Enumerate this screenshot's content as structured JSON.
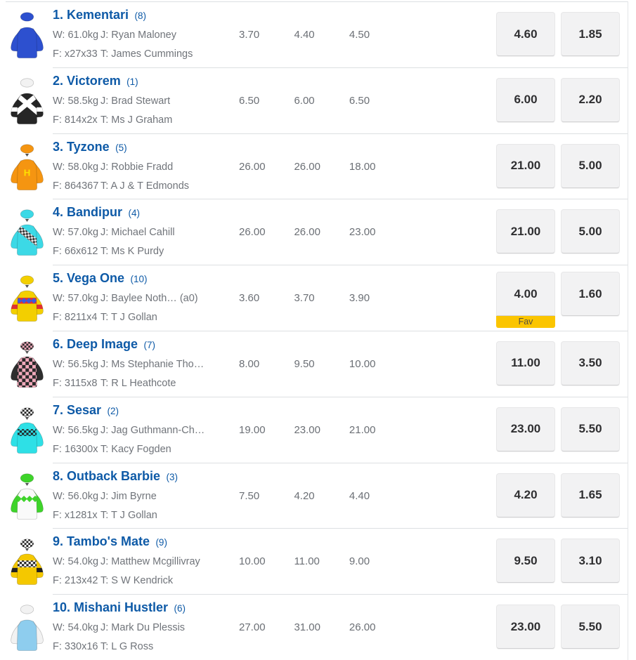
{
  "colors": {
    "link_blue": "#0e5aa7",
    "detail_gray": "#70747a",
    "button_bg": "#f2f2f3",
    "fav_yellow": "#fbc500",
    "separator": "#dddfe2"
  },
  "fav_label": "Fav",
  "horses": [
    {
      "number_name": "1. Kementari",
      "barrier": "(8)",
      "weight": "W: 61.0kg",
      "jockey": "J: Ryan Maloney",
      "form": "F: x27x33",
      "trainer": "T: James Cummings",
      "flucs": [
        "3.70",
        "4.40",
        "4.50"
      ],
      "win": "4.60",
      "place": "1.85",
      "fav": false,
      "silk": {
        "icon": "jockey-silks",
        "cap": "#2d50cf",
        "body": "#2d50cf",
        "sleeves": "#2d50cf",
        "pattern": "plain",
        "peak": false
      }
    },
    {
      "number_name": "2. Victorem",
      "barrier": "(1)",
      "weight": "W: 58.5kg",
      "jockey": "J: Brad Stewart",
      "form": "F: 814x2x",
      "trainer": "T: Ms J Graham",
      "flucs": [
        "6.50",
        "6.00",
        "6.50"
      ],
      "win": "6.00",
      "place": "2.20",
      "fav": false,
      "silk": {
        "icon": "jockey-silks",
        "cap": "#f2f2f2",
        "body": "#262626",
        "sleeves": "#262626",
        "pattern": "cross-sash",
        "pattern_color": "#ffffff",
        "sleeve_band": "#ffffff",
        "peak": false
      }
    },
    {
      "number_name": "3. Tyzone",
      "barrier": "(5)",
      "weight": "W: 58.0kg",
      "jockey": "J: Robbie Fradd",
      "form": "F: 864367",
      "trainer": "T: A J & T Edmonds",
      "flucs": [
        "26.00",
        "26.00",
        "18.00"
      ],
      "win": "21.00",
      "place": "5.00",
      "fav": false,
      "silk": {
        "icon": "jockey-silks",
        "cap": "#f59511",
        "body": "#f59511",
        "sleeves": "#f59511",
        "pattern": "letter",
        "letter": "H",
        "pattern_color": "#ffe000",
        "peak": true
      }
    },
    {
      "number_name": "4. Bandipur",
      "barrier": "(4)",
      "weight": "W: 57.0kg",
      "jockey": "J: Michael Cahill",
      "form": "F: 66x612",
      "trainer": "T: Ms K Purdy",
      "flucs": [
        "26.00",
        "26.00",
        "23.00"
      ],
      "win": "21.00",
      "place": "5.00",
      "fav": false,
      "silk": {
        "icon": "jockey-silks",
        "cap": "#3cd9e6",
        "body": "#3cd9e6",
        "sleeves": "#3cd9e6",
        "pattern": "check-sash",
        "pattern_color": "#333333",
        "pattern_color2": "#e8e8e8",
        "peak": true
      }
    },
    {
      "number_name": "5. Vega One",
      "barrier": "(10)",
      "weight": "W: 57.0kg",
      "jockey": "J: Baylee Noth… (a0)",
      "form": "F: 8211x4",
      "trainer": "T: T J Gollan",
      "flucs": [
        "3.60",
        "3.70",
        "3.90"
      ],
      "win": "4.00",
      "place": "1.60",
      "fav": true,
      "silk": {
        "icon": "jockey-silks",
        "cap": "#f3cf00",
        "body": "#f3cf00",
        "sleeves": "#f3cf00",
        "pattern": "band-diamonds",
        "pattern_color": "#e03131",
        "pattern_color2": "#3b5bdb",
        "sleeve_band": "#e03131",
        "peak": true
      }
    },
    {
      "number_name": "6. Deep Image",
      "barrier": "(7)",
      "weight": "W: 56.5kg",
      "jockey": "J: Ms Stephanie Tho…",
      "form": "F: 3115x8",
      "trainer": "T: R L Heathcote",
      "flucs": [
        "8.00",
        "9.50",
        "10.00"
      ],
      "win": "11.00",
      "place": "3.50",
      "fav": false,
      "silk": {
        "icon": "jockey-silks",
        "cap": "#f2a9bb",
        "cap2": "#2a2a2a",
        "cap_pattern": "checker",
        "body": "#f2a9bb",
        "sleeves": "#2e2e2e",
        "pattern": "checks",
        "pattern_color": "#2a2a2a",
        "peak": true
      }
    },
    {
      "number_name": "7. Sesar",
      "barrier": "(2)",
      "weight": "W: 56.5kg",
      "jockey": "J: Jag Guthmann-Ch…",
      "form": "F: 16300x",
      "trainer": "T: Kacy Fogden",
      "flucs": [
        "19.00",
        "23.00",
        "21.00"
      ],
      "win": "23.00",
      "place": "5.50",
      "fav": false,
      "silk": {
        "icon": "jockey-silks",
        "cap": "#f5f5f5",
        "cap2": "#222222",
        "cap_pattern": "checker",
        "body": "#2ee0e6",
        "sleeves": "#2ee0e6",
        "pattern": "check-band",
        "pattern_color": "#222222",
        "pattern_color2": "#2ee0e6",
        "peak": true
      }
    },
    {
      "number_name": "8. Outback Barbie",
      "barrier": "(3)",
      "weight": "W: 56.0kg",
      "jockey": "J: Jim Byrne",
      "form": "F: x1281x",
      "trainer": "T: T J Gollan",
      "flucs": [
        "7.50",
        "4.20",
        "4.40"
      ],
      "win": "4.20",
      "place": "1.65",
      "fav": false,
      "silk": {
        "icon": "jockey-silks",
        "cap": "#3ed42a",
        "body": "#fafafa",
        "sleeves": "#3ed42a",
        "pattern": "diamond-band",
        "pattern_color": "#3ed42a",
        "peak": true
      }
    },
    {
      "number_name": "9. Tambo's Mate",
      "barrier": "(9)",
      "weight": "W: 54.0kg",
      "jockey": "J: Matthew Mcgillivray",
      "form": "F: 213x42",
      "trainer": "T: S W Kendrick",
      "flucs": [
        "10.00",
        "11.00",
        "9.00"
      ],
      "win": "9.50",
      "place": "3.10",
      "fav": false,
      "silk": {
        "icon": "jockey-silks",
        "cap": "#ffffff",
        "cap2": "#222222",
        "cap_pattern": "checker",
        "body": "#f4c800",
        "sleeves": "#f4c800",
        "pattern": "check-band",
        "pattern_color": "#222222",
        "pattern_color2": "#ffffff",
        "sleeve_band": "#222222",
        "peak": true
      }
    },
    {
      "number_name": "10. Mishani Hustler",
      "barrier": "(6)",
      "weight": "W: 54.0kg",
      "jockey": "J: Mark Du Plessis",
      "form": "F: 330x16",
      "trainer": "T: L G Ross",
      "flucs": [
        "27.00",
        "31.00",
        "26.00"
      ],
      "win": "23.00",
      "place": "5.50",
      "fav": false,
      "silk": {
        "icon": "jockey-silks",
        "cap": "#f2f2f2",
        "body": "#8ecdee",
        "sleeves": "#f2f2f2",
        "pattern": "plain",
        "peak": false
      }
    }
  ]
}
